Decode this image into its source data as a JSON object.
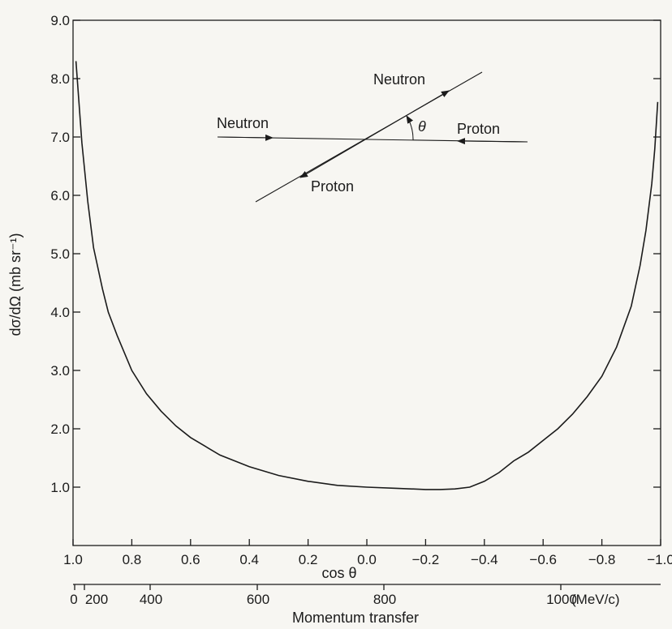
{
  "chart_data": {
    "type": "line",
    "title": "",
    "xlabel": "cos θ",
    "ylabel": "dσ/dΩ (mb sr⁻¹)",
    "xlim": [
      1.0,
      -1.0
    ],
    "ylim": [
      0,
      9.0
    ],
    "grid": false,
    "y_ticks": [
      "1.0",
      "2.0",
      "3.0",
      "4.0",
      "5.0",
      "6.0",
      "7.0",
      "8.0",
      "9.0"
    ],
    "x_ticks": [
      "1.0",
      "0.8",
      "0.6",
      "0.4",
      "0.2",
      "0.0",
      "−0.2",
      "−0.4",
      "−0.6",
      "−0.8",
      "−1.0"
    ],
    "secondary_x_axis": {
      "label": "Momentum transfer",
      "ticks": [
        "0",
        "200",
        "400",
        "600",
        "800",
        "1000"
      ],
      "unit": "(MeV/c)"
    },
    "series": [
      {
        "x": [
          0.99,
          0.97,
          0.95,
          0.93,
          0.9,
          0.88,
          0.85,
          0.8,
          0.75,
          0.7,
          0.65,
          0.6,
          0.5,
          0.4,
          0.3,
          0.2,
          0.1,
          0.0,
          -0.1,
          -0.2,
          -0.25,
          -0.3,
          -0.35,
          -0.4,
          -0.45,
          -0.5,
          -0.55,
          -0.6,
          -0.65,
          -0.7,
          -0.75,
          -0.8,
          -0.85,
          -0.9,
          -0.93,
          -0.95,
          -0.97,
          -0.98,
          -0.99
        ],
        "y": [
          8.3,
          6.9,
          5.9,
          5.1,
          4.4,
          4.0,
          3.6,
          3.0,
          2.6,
          2.3,
          2.05,
          1.85,
          1.55,
          1.35,
          1.2,
          1.1,
          1.03,
          1.0,
          0.98,
          0.96,
          0.96,
          0.97,
          1.0,
          1.1,
          1.25,
          1.45,
          1.6,
          1.8,
          2.0,
          2.25,
          2.55,
          2.9,
          3.4,
          4.1,
          4.8,
          5.4,
          6.2,
          6.8,
          7.6
        ]
      }
    ],
    "annotations": {
      "beam_left": "Neutron",
      "beam_right": "Proton",
      "scattered_upper": "Neutron",
      "scattered_lower": "Proton",
      "angle": "θ"
    }
  }
}
